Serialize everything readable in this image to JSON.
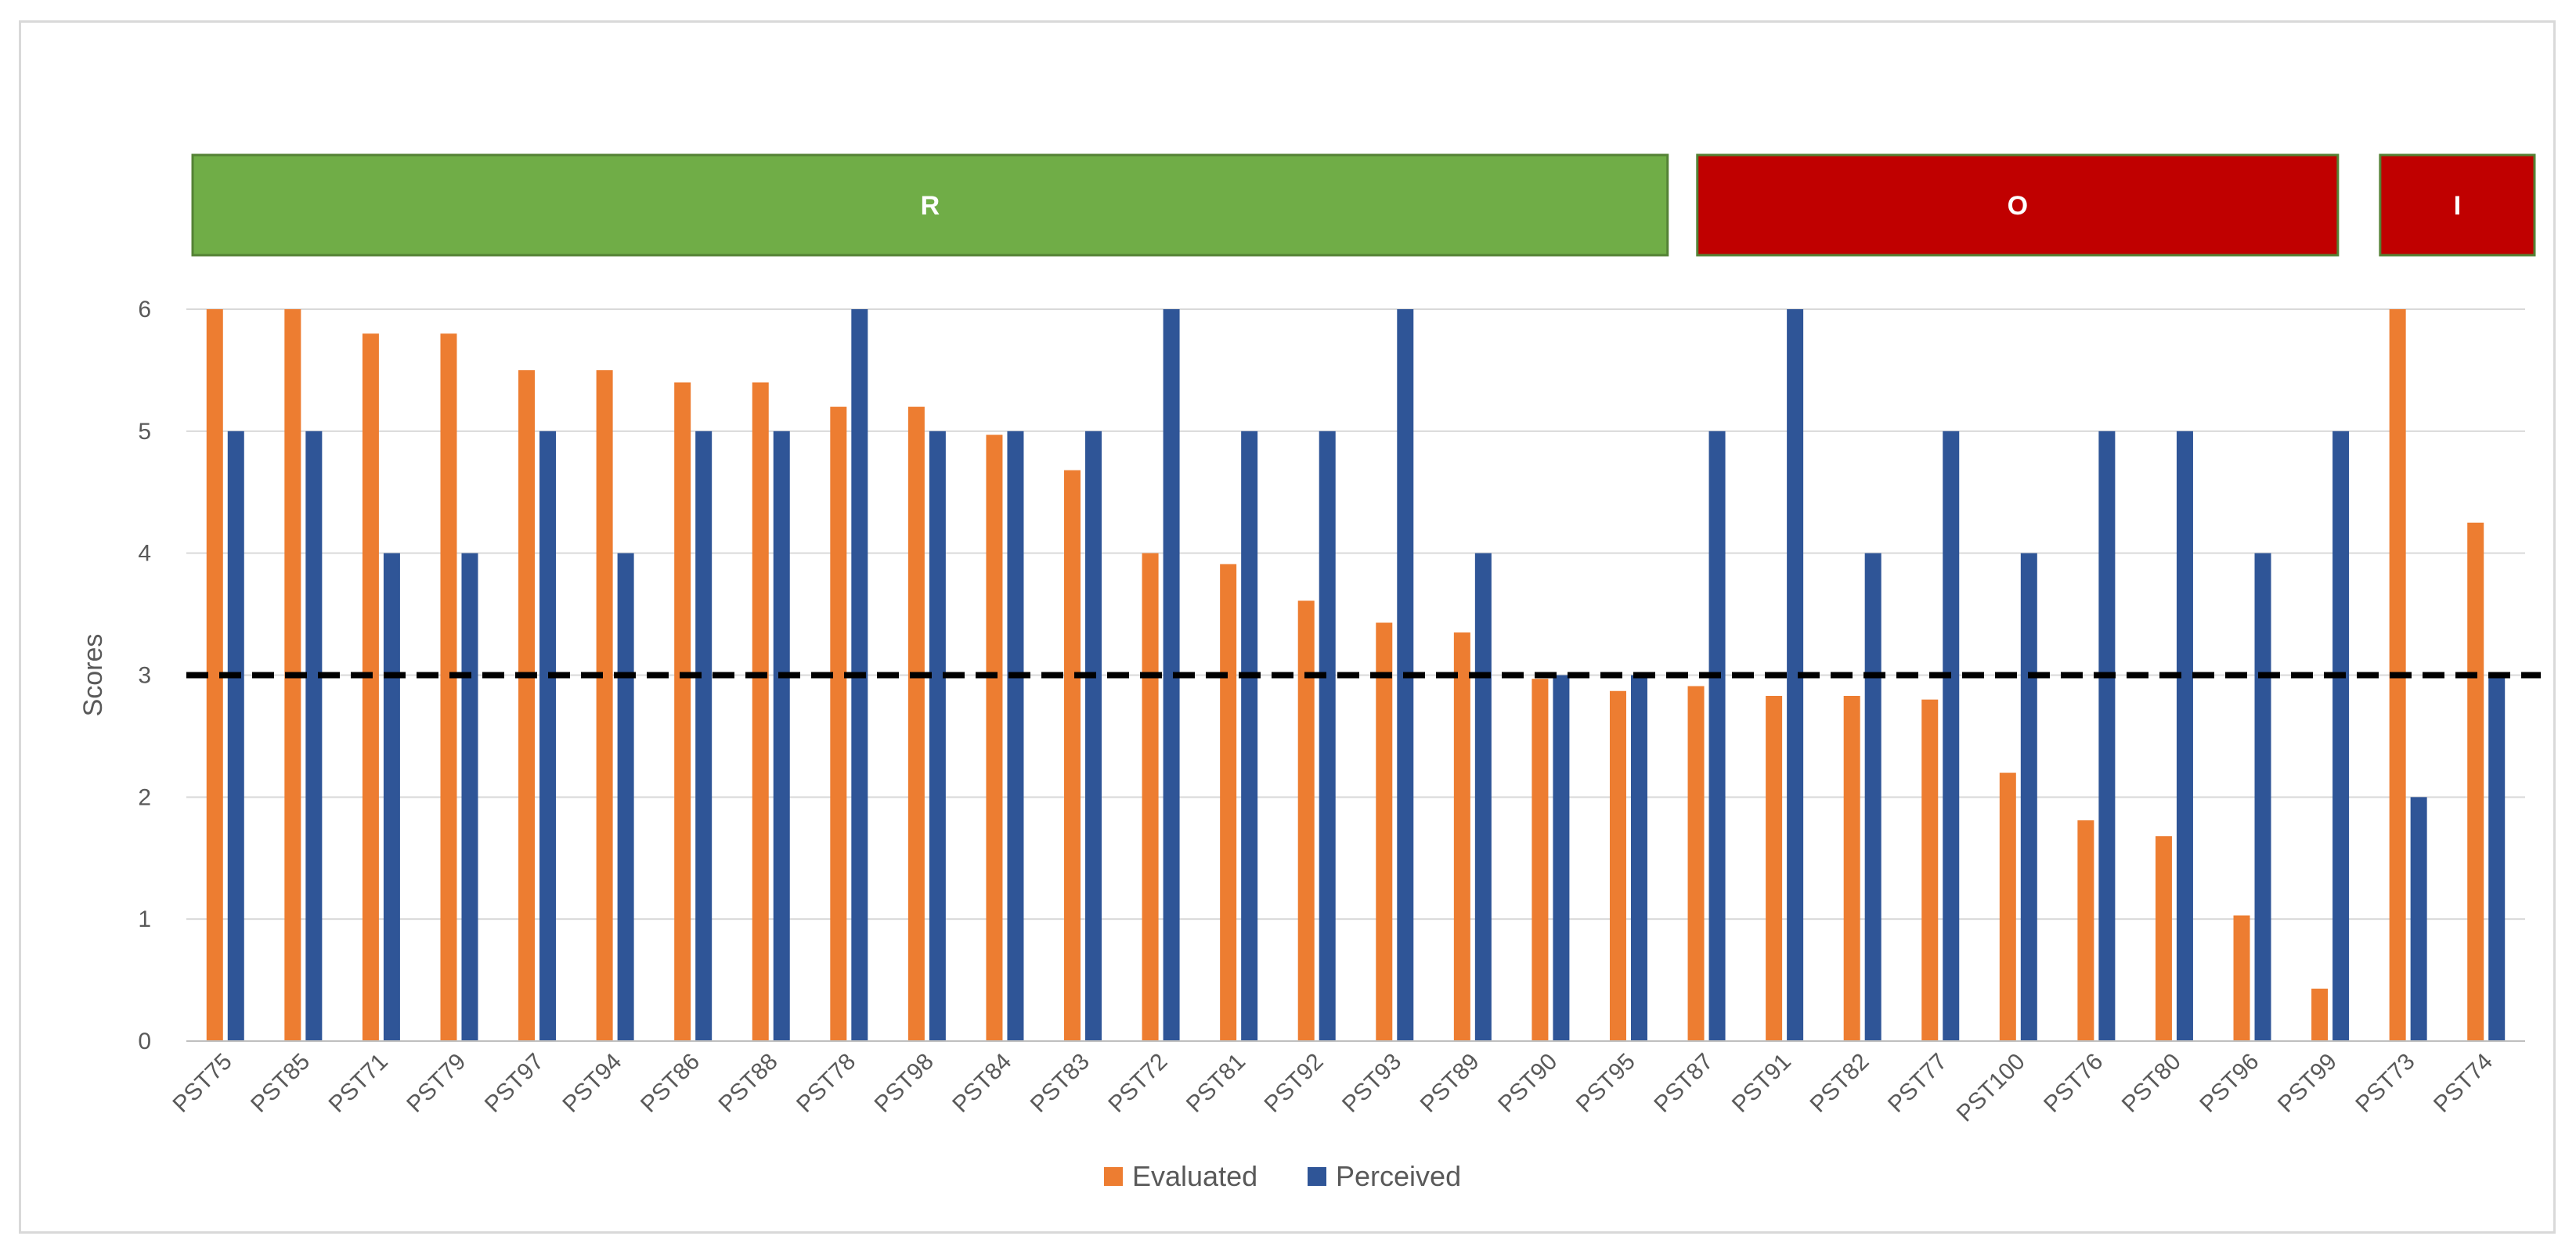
{
  "chart_data": {
    "type": "bar",
    "title": "",
    "xlabel": "",
    "ylabel": "Scores",
    "ylim": [
      0,
      6
    ],
    "yticks": [
      0,
      1,
      2,
      3,
      4,
      5,
      6
    ],
    "grid": true,
    "legend_position": "bottom-center",
    "categories": [
      "PST75",
      "PST85",
      "PST71",
      "PST79",
      "PST97",
      "PST94",
      "PST86",
      "PST88",
      "PST78",
      "PST98",
      "PST84",
      "PST83",
      "PST72",
      "PST81",
      "PST92",
      "PST93",
      "PST89",
      "PST90",
      "PST95",
      "PST87",
      "PST91",
      "PST82",
      "PST77",
      "PST100",
      "PST76",
      "PST80",
      "PST96",
      "PST99",
      "PST73",
      "PST74"
    ],
    "series": [
      {
        "name": "Evaluated",
        "color": "#ED7D31",
        "values": [
          6.0,
          6.0,
          5.8,
          5.8,
          5.5,
          5.5,
          5.4,
          5.4,
          5.2,
          5.2,
          4.97,
          4.68,
          4.0,
          3.91,
          3.61,
          3.43,
          3.35,
          2.97,
          2.87,
          2.91,
          2.83,
          2.83,
          2.8,
          2.2,
          1.81,
          1.68,
          1.03,
          0.43,
          6.0,
          4.25
        ]
      },
      {
        "name": "Perceived",
        "color": "#2F5597",
        "values": [
          5,
          5,
          4,
          4,
          5,
          4,
          5,
          5,
          6,
          5,
          5,
          5,
          6,
          5,
          5,
          6,
          4,
          3,
          3,
          5,
          6,
          4,
          5,
          4,
          5,
          5,
          4,
          5,
          2,
          3
        ]
      }
    ],
    "reference_line": {
      "y": 3,
      "style": "dashed",
      "color": "#000000"
    },
    "groups": [
      {
        "label": "R",
        "from": "PST75",
        "to": "PST95",
        "color": "#70AD47"
      },
      {
        "label": "O",
        "from": "PST87",
        "to": "PST99",
        "color": "#C00000"
      },
      {
        "label": "I",
        "from": "PST73",
        "to": "PST74",
        "color": "#C00000"
      }
    ]
  }
}
